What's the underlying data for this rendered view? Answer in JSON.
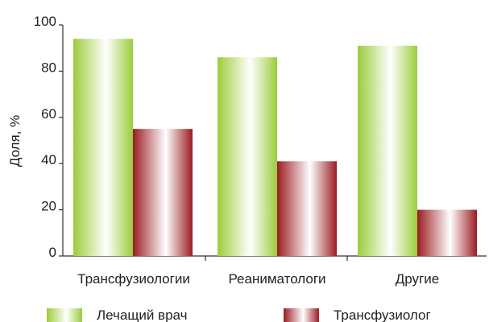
{
  "chart_data": {
    "type": "bar",
    "ylabel": "Доля, %",
    "xlabel": "",
    "ylim": [
      0,
      100
    ],
    "yticks": [
      0,
      20,
      40,
      60,
      80,
      100
    ],
    "categories": [
      "Трансфузиологии",
      "Реаниматологи",
      "Другие"
    ],
    "series": [
      {
        "name": "Лечащий врач",
        "values": [
          94,
          86,
          91
        ],
        "color": "#9ccc3c"
      },
      {
        "name": "Трансфузиолог",
        "values": [
          55,
          41,
          20
        ],
        "color": "#9b1c22"
      }
    ],
    "grid": false,
    "legend": "bottom"
  }
}
